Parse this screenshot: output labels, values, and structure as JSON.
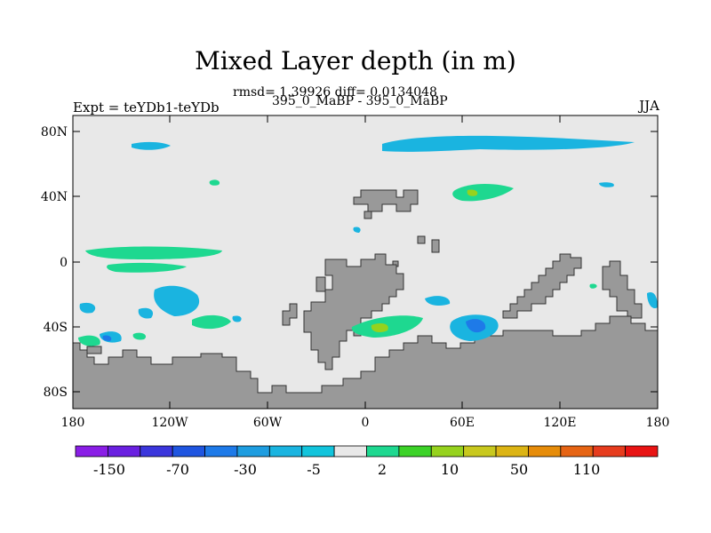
{
  "title": "Mixed Layer depth (in m)",
  "stats_line": "rmsd= 1.39926 diff= 0.0134048",
  "compare_line": "395_0_MaBP - 395_0_MaBP",
  "experiment_label": "Expt = teYDb1-teYDb",
  "season": "JJA",
  "axes": {
    "y_ticks": [
      "80N",
      "40N",
      "0",
      "40S",
      "80S"
    ],
    "x_ticks": [
      "180",
      "120W",
      "60W",
      "0",
      "60E",
      "120E",
      "180"
    ]
  },
  "colorbar": {
    "labels": [
      "-150",
      "-70",
      "-30",
      "-5",
      "2",
      "10",
      "50",
      "110"
    ],
    "colors": [
      "#8a1ee6",
      "#6a20e0",
      "#3b36dc",
      "#1f55e0",
      "#1e7ae8",
      "#1e9de0",
      "#1ab4e0",
      "#12c4dc",
      "#e8e8e8",
      "#1ed890",
      "#3cd228",
      "#96d21e",
      "#c8c81e",
      "#dcb414",
      "#e68c0a",
      "#e66414",
      "#e63c1e",
      "#e81414"
    ]
  },
  "colors": {
    "land": "#999999",
    "ocean_background": "#e8e8e8",
    "positive_anomaly": "#1ed890",
    "negative_anomaly": "#1ab4e0"
  }
}
